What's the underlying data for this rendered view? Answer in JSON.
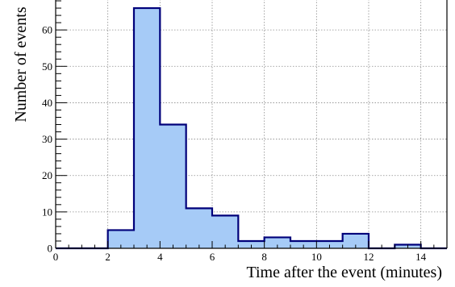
{
  "chart_data": {
    "type": "bar",
    "xlabel": "Time after the event (minutes)",
    "ylabel": "Number of events",
    "xlim": [
      0,
      15
    ],
    "ylim": [
      0,
      70
    ],
    "grid": true,
    "x_bin_edges": [
      0,
      1,
      2,
      3,
      4,
      5,
      6,
      7,
      8,
      9,
      10,
      11,
      12,
      13,
      14,
      15
    ],
    "values": [
      0,
      0,
      5,
      66,
      34,
      11,
      9,
      2,
      3,
      2,
      2,
      4,
      0,
      1,
      0
    ],
    "x_ticks": [
      0,
      2,
      4,
      6,
      8,
      10,
      12,
      14
    ],
    "y_ticks": [
      0,
      10,
      20,
      30,
      40,
      50,
      60
    ],
    "fill_color": "#a6cbf7",
    "line_color": "#00007a"
  }
}
